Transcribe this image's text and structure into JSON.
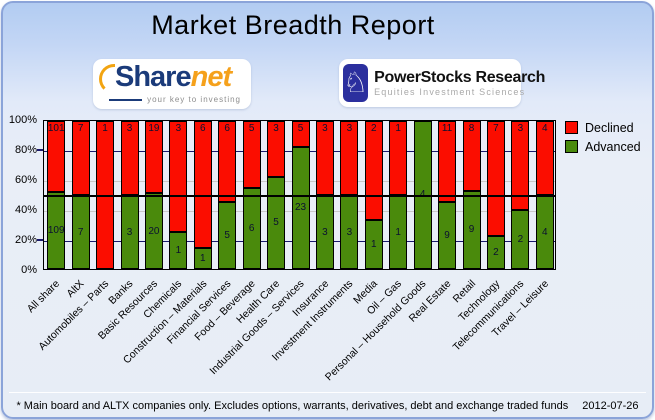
{
  "header": {
    "title": "Market Breadth Report"
  },
  "logos": {
    "sharenet": {
      "name_part1": "Share",
      "name_part2": "net",
      "tagline": "your key to investing"
    },
    "powerstocks": {
      "knight_icon": "♘",
      "title": "PowerStocks  Research",
      "subtitle": "Equities Investment Sciences"
    }
  },
  "legend": [
    {
      "label": "Declined",
      "color": "#fb0d00"
    },
    {
      "label": "Advanced",
      "color": "#4a8a0c"
    }
  ],
  "chart_data": {
    "type": "bar",
    "stacked": true,
    "normalized": "each bar scaled to 100%; segment height = value / (declined+advanced)",
    "categories": [
      "All share",
      "AltX",
      "Automobiles – Parts",
      "Banks",
      "Basic Resources",
      "Chemicals",
      "Construction – Materials",
      "Financial Services",
      "Food – Beverage",
      "Health Care",
      "Industrial Goods – Services",
      "Insurance",
      "Investment Instruments",
      "Media",
      "Oil – Gas",
      "Personal – Household Goods",
      "Real Estate",
      "Retail",
      "Technology",
      "Telecommunications",
      "Travel – Leisure"
    ],
    "series": [
      {
        "name": "Declined",
        "color": "#fb0d00",
        "values": [
          101,
          7,
          1,
          3,
          19,
          3,
          6,
          6,
          5,
          3,
          5,
          3,
          3,
          2,
          1,
          0,
          11,
          8,
          7,
          3,
          4
        ]
      },
      {
        "name": "Advanced",
        "color": "#4a8a0c",
        "values": [
          109,
          7,
          0,
          3,
          20,
          1,
          1,
          5,
          6,
          5,
          23,
          3,
          3,
          1,
          1,
          4,
          9,
          9,
          2,
          2,
          4
        ]
      }
    ],
    "y_ticks": [
      "100%",
      "80%",
      "60%",
      "40%",
      "20%",
      "0%"
    ],
    "ylim": [
      0,
      100
    ],
    "gridlines": {
      "navy_at": [
        20,
        80
      ],
      "gray_at": [
        40,
        60
      ],
      "black_at": [
        50
      ],
      "navy_color": "#1a1a6e",
      "gray_color": "#c9c9c9",
      "black_color": "#000000"
    },
    "legend_position": "top-right",
    "plot_background": "#e9eef7"
  },
  "footer": {
    "note": "* Main board and ALTX companies only. Excludes options, warrants, derivatives, debt and exchange traded funds",
    "date": "2012-07-26"
  }
}
